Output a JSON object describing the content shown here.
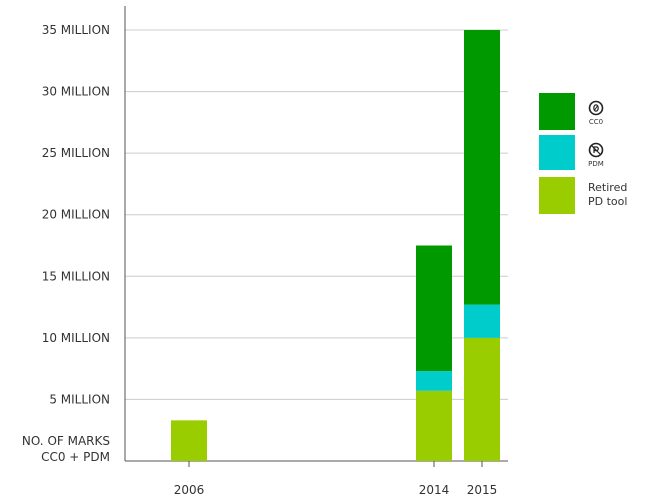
{
  "chart_data": {
    "type": "bar",
    "stacked": true,
    "categories": [
      "2006",
      "2014",
      "2015"
    ],
    "series": [
      {
        "name": "Retired PD tool",
        "color": "#9ACD00",
        "values": [
          3.3,
          5.7,
          10.0
        ]
      },
      {
        "name": "PDM",
        "color": "#00CCCC",
        "values": [
          0,
          1.6,
          2.7
        ]
      },
      {
        "name": "CC0",
        "color": "#009900",
        "values": [
          0,
          10.2,
          22.3
        ]
      }
    ],
    "ylim": [
      0,
      35
    ],
    "yticks": [
      {
        "value": 0,
        "lines": [
          "NO. OF MARKS",
          "CC0 + PDM"
        ]
      },
      {
        "value": 5,
        "lines": [
          "5 MILLION"
        ]
      },
      {
        "value": 10,
        "lines": [
          "10 MILLION"
        ]
      },
      {
        "value": 15,
        "lines": [
          "15 MILLION"
        ]
      },
      {
        "value": 20,
        "lines": [
          "20 MILLION"
        ]
      },
      {
        "value": 25,
        "lines": [
          "25 MILLION"
        ]
      },
      {
        "value": 30,
        "lines": [
          "30 MILLION"
        ]
      },
      {
        "value": 35,
        "lines": [
          "35 MILLION"
        ]
      }
    ],
    "grid": true,
    "legend_position": "right",
    "legend": [
      {
        "series": "CC0",
        "icon": "cc0-icon",
        "icon_label": "CC0",
        "text_lines": []
      },
      {
        "series": "PDM",
        "icon": "pdm-icon",
        "icon_label": "PDM",
        "text_lines": []
      },
      {
        "series": "Retired PD tool",
        "icon": "",
        "icon_label": "",
        "text_lines": [
          "Retired",
          "PD tool"
        ]
      }
    ]
  }
}
